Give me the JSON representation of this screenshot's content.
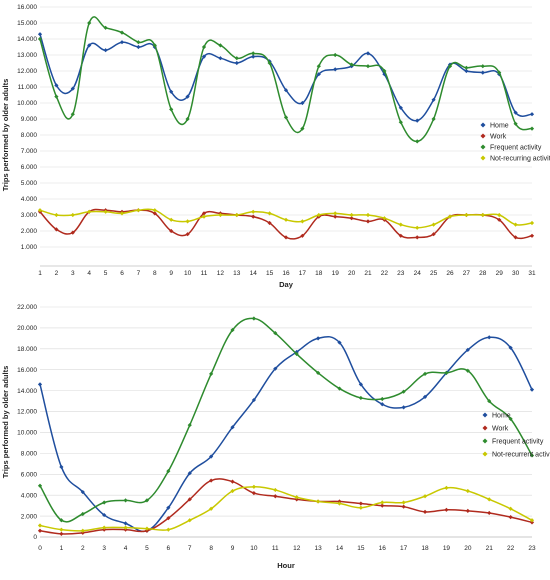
{
  "chart_data": [
    {
      "type": "line",
      "xlabel": "Day",
      "ylabel": "Trips performed by older adults",
      "ylim": [
        0,
        16000
      ],
      "ytick_labels": [
        "1.000",
        "2.000",
        "3.000",
        "4.000",
        "5.000",
        "6.000",
        "7.000",
        "8.000",
        "9.000",
        "10.000",
        "11.000",
        "12.000",
        "13.000",
        "14.000",
        "15.000",
        "16.000"
      ],
      "xtick_labels": [
        "1",
        "2",
        "3",
        "4",
        "5",
        "6",
        "7",
        "8",
        "9",
        "10",
        "11",
        "12",
        "13",
        "14",
        "15",
        "16",
        "17",
        "18",
        "19",
        "20",
        "21",
        "22",
        "23",
        "24",
        "25",
        "26",
        "27",
        "28",
        "29",
        "30",
        "31"
      ],
      "legend_position": "right",
      "grid": true,
      "x": [
        1,
        2,
        3,
        4,
        5,
        6,
        7,
        8,
        9,
        10,
        11,
        12,
        13,
        14,
        15,
        16,
        17,
        18,
        19,
        20,
        21,
        22,
        23,
        24,
        25,
        26,
        27,
        28,
        29,
        30,
        31
      ],
      "series": [
        {
          "name": "Home",
          "color": "#1f4e9e",
          "values": [
            14300,
            11100,
            10900,
            13600,
            13300,
            13800,
            13500,
            13500,
            10700,
            10400,
            12900,
            12800,
            12500,
            12900,
            12600,
            10800,
            10000,
            11800,
            12100,
            12300,
            13100,
            11800,
            9700,
            8900,
            10200,
            12400,
            12000,
            11900,
            11800,
            9400,
            9300
          ]
        },
        {
          "name": "Work",
          "color": "#b02a1e",
          "values": [
            3200,
            2100,
            1900,
            3200,
            3300,
            3200,
            3300,
            3100,
            2000,
            1800,
            3100,
            3100,
            3000,
            2900,
            2500,
            1600,
            1700,
            2900,
            2900,
            2800,
            2600,
            2700,
            1700,
            1600,
            1800,
            2900,
            3000,
            3000,
            2700,
            1600,
            1700
          ]
        },
        {
          "name": "Frequent activity",
          "color": "#2e8b2e",
          "values": [
            14000,
            10400,
            9300,
            15000,
            14700,
            14400,
            13800,
            13600,
            9600,
            9000,
            13500,
            13600,
            12800,
            13100,
            12500,
            9100,
            8400,
            12300,
            13000,
            12400,
            12300,
            12000,
            8800,
            7600,
            9000,
            12300,
            12200,
            12300,
            11900,
            8700,
            8400
          ]
        },
        {
          "name": "Not-recurring activity",
          "color": "#c8c800",
          "values": [
            3300,
            3000,
            3000,
            3200,
            3200,
            3100,
            3300,
            3300,
            2700,
            2600,
            2900,
            3000,
            3000,
            3200,
            3100,
            2700,
            2600,
            3000,
            3100,
            3000,
            3000,
            2800,
            2400,
            2200,
            2400,
            2900,
            3000,
            3000,
            3000,
            2400,
            2500
          ]
        }
      ]
    },
    {
      "type": "line",
      "xlabel": "Hour",
      "ylabel": "Trips performed by older adults",
      "ylim": [
        0,
        22000
      ],
      "ytick_labels": [
        "0",
        "2.000",
        "4.000",
        "6.000",
        "8.000",
        "10.000",
        "12.000",
        "14.000",
        "16.000",
        "18.000",
        "20.000",
        "22.000"
      ],
      "xtick_labels": [
        "0",
        "1",
        "2",
        "3",
        "4",
        "5",
        "6",
        "7",
        "8",
        "9",
        "10",
        "11",
        "12",
        "13",
        "14",
        "15",
        "16",
        "17",
        "18",
        "19",
        "20",
        "21",
        "22",
        "23"
      ],
      "legend_position": "right",
      "grid": true,
      "x": [
        0,
        1,
        2,
        3,
        4,
        5,
        6,
        7,
        8,
        9,
        10,
        11,
        12,
        13,
        14,
        15,
        16,
        17,
        18,
        19,
        20,
        21,
        22,
        23
      ],
      "series": [
        {
          "name": "Home",
          "color": "#1f4e9e",
          "values": [
            14600,
            6700,
            4300,
            2100,
            1300,
            600,
            2800,
            6100,
            7700,
            10500,
            13100,
            16100,
            17700,
            19000,
            18600,
            14600,
            12700,
            12400,
            13400,
            15700,
            17900,
            19100,
            18100,
            14100
          ]
        },
        {
          "name": "Work",
          "color": "#b02a1e",
          "values": [
            600,
            300,
            400,
            700,
            700,
            600,
            1800,
            3600,
            5400,
            5300,
            4200,
            3900,
            3600,
            3400,
            3400,
            3200,
            3000,
            2900,
            2400,
            2600,
            2500,
            2300,
            1900,
            1400
          ]
        },
        {
          "name": "Frequent activity",
          "color": "#2e8b2e",
          "values": [
            4900,
            1600,
            2200,
            3300,
            3500,
            3500,
            6300,
            10700,
            15600,
            19800,
            20900,
            19500,
            17500,
            15700,
            14200,
            13300,
            13200,
            13900,
            15600,
            15700,
            15900,
            13000,
            11300,
            7800
          ]
        },
        {
          "name": "Not-recurrent activity",
          "color": "#c8c800",
          "values": [
            1100,
            700,
            600,
            900,
            900,
            800,
            700,
            1600,
            2700,
            4400,
            4800,
            4500,
            3800,
            3400,
            3200,
            2800,
            3300,
            3300,
            3900,
            4700,
            4400,
            3600,
            2700,
            1600
          ]
        }
      ]
    }
  ]
}
